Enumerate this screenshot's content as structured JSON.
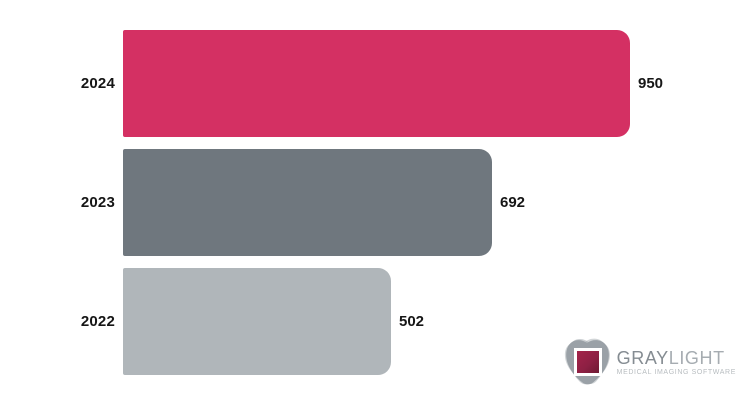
{
  "chart_data": {
    "type": "bar",
    "orientation": "horizontal",
    "title": "",
    "xlabel": "",
    "ylabel": "",
    "categories": [
      "2024",
      "2023",
      "2022"
    ],
    "values": [
      950,
      692,
      502
    ],
    "value_labels": [
      "950",
      "692",
      "502"
    ],
    "bar_colors": [
      "#d43063",
      "#6f777e",
      "#b0b6ba"
    ],
    "xlim": [
      0,
      950
    ],
    "grid": false,
    "legend": false,
    "label_color": "#161616"
  },
  "logo": {
    "brand_primary": "GRAY",
    "brand_secondary": "LIGHT",
    "tagline": "MEDICAL IMAGING SOFTWARE",
    "icon": "graylight-blob-icon",
    "icon_blob_color": "#9aa1a7",
    "icon_square_color": "#8e2044",
    "icon_frame_color": "#ffffff"
  },
  "colors": {
    "background": "#ffffff"
  }
}
